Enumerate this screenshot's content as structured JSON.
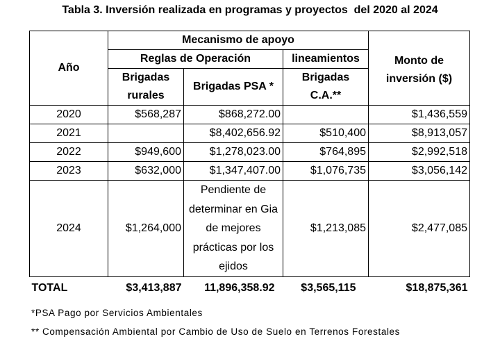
{
  "title": "Tabla 3. Inversión realizada en programas y proyectos  del 2020 al 2024",
  "table": {
    "header": {
      "year": "Año",
      "mechanism": "Mecanismo de apoyo",
      "rules": "Reglas de Operación",
      "guidelines": "lineamientos",
      "amount": "Monto de inversión ($)",
      "columns": [
        "Brigadas rurales",
        "Brigadas  PSA *",
        "Brigadas C.A.**"
      ]
    },
    "rows": [
      [
        "2020",
        "$568,287",
        "$868,272.00",
        null,
        "$1,436,559"
      ],
      [
        "2021",
        null,
        "$8,402,656.92",
        "$510,400",
        "$8,913,057"
      ],
      [
        "2022",
        "$949,600",
        "$1,278,023.00",
        "$764,895",
        "$2,992,518"
      ],
      [
        "2023",
        "$632,000",
        "$1,347,407.00",
        "$1,076,735",
        "$3,056,142"
      ],
      [
        "2024",
        "$1,264,000",
        "Pendiente de determinar en Gia de mejores prácticas por los ejidos",
        "$1,213,085",
        "$2,477,085"
      ]
    ],
    "total": [
      "TOTAL",
      "$3,413,887",
      "11,896,358.92",
      "$3,565,115",
      "$18,875,361"
    ]
  },
  "footnotes": [
    "*PSA Pago por Servicios Ambientales",
    "** Compensación Ambiental por Cambio de Uso de Suelo en Terrenos Forestales"
  ]
}
